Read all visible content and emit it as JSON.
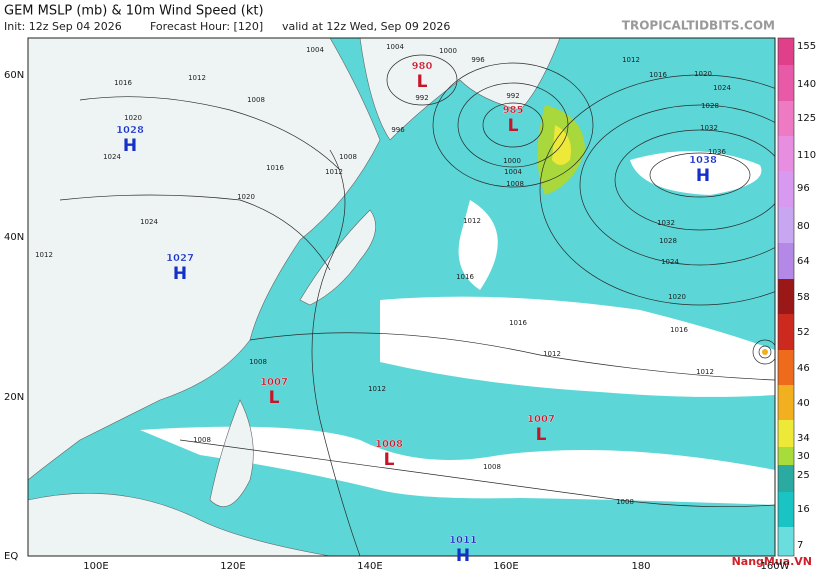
{
  "header": {
    "title": "GEM MSLP (mb) & 10m Wind Speed (kt)",
    "init": "Init: 12z Sep 04 2026",
    "forecast_hour": "Forecast Hour: [120]",
    "valid": "valid at 12z Wed, Sep 09 2026",
    "site": "TROPICALTIDBITS.COM"
  },
  "map": {
    "lat_labels": [
      "60N",
      "40N",
      "20N",
      "EQ"
    ],
    "lon_labels": [
      "100E",
      "120E",
      "140E",
      "160E",
      "180",
      "160W"
    ],
    "pressure_centers": [
      {
        "letter": "H",
        "value": 1028
      },
      {
        "letter": "H",
        "value": 1027
      },
      {
        "letter": "L",
        "value": 980
      },
      {
        "letter": "L",
        "value": 985
      },
      {
        "letter": "H",
        "value": 1038
      },
      {
        "letter": "L",
        "value": 1007
      },
      {
        "letter": "L",
        "value": 1008
      },
      {
        "letter": "L",
        "value": 1007
      },
      {
        "letter": "H",
        "value": 1011
      }
    ],
    "isobar_labels": [
      1004,
      1004,
      1000,
      996,
      1012,
      1016,
      1020,
      1024,
      1028,
      1032,
      1036,
      1016,
      1012,
      1008,
      1020,
      1024,
      1016,
      1020,
      1024,
      1012,
      1008,
      1012,
      992,
      996,
      992,
      1000,
      1004,
      1008,
      1012,
      1016,
      1032,
      1028,
      1024,
      1020,
      1016,
      1016,
      1012,
      1012,
      1012,
      1008,
      1008,
      1008,
      1008
    ]
  },
  "colorbar": {
    "labels": [
      155,
      140,
      125,
      110,
      96,
      80,
      64,
      58,
      52,
      46,
      40,
      34,
      30,
      25,
      16,
      7
    ],
    "colors": [
      "#e0408a",
      "#e85aa8",
      "#ee7ac4",
      "#e88ee0",
      "#d89af0",
      "#c9a6f2",
      "#b488e6",
      "#9a1818",
      "#cc2a1e",
      "#ee6a1c",
      "#f2b020",
      "#eee838",
      "#a8dc3a",
      "#2aaaa0",
      "#1ac4c4",
      "#6adede",
      "#bff0f0"
    ]
  },
  "watermark": "NangMua.VN"
}
